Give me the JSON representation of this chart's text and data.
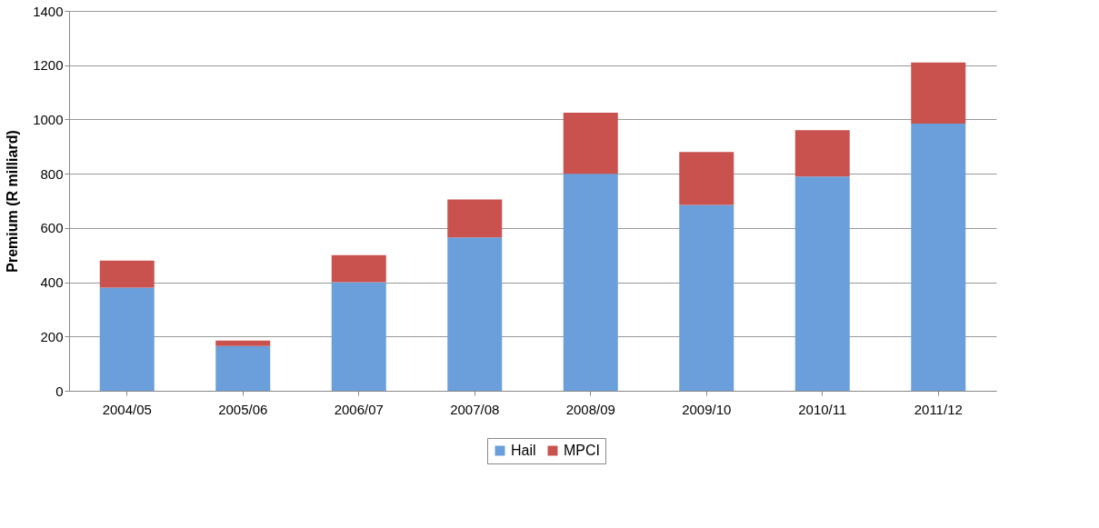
{
  "chart_data": {
    "type": "bar",
    "stacked": true,
    "ylabel": "Premium (R milliard)",
    "categories": [
      "2004/05",
      "2005/06",
      "2006/07",
      "2007/08",
      "2008/09",
      "2009/10",
      "2010/11",
      "2011/12"
    ],
    "series": [
      {
        "name": "Hail",
        "color": "#6a9fdb",
        "values": [
          380,
          165,
          400,
          565,
          800,
          685,
          790,
          985
        ]
      },
      {
        "name": "MPCI",
        "color": "#c9524f",
        "values": [
          100,
          20,
          100,
          140,
          225,
          195,
          170,
          225
        ]
      }
    ],
    "ylim": [
      0,
      1400
    ],
    "yticks": [
      0,
      200,
      400,
      600,
      800,
      1000,
      1200,
      1400
    ],
    "grid": "y",
    "legend": "bottom"
  }
}
